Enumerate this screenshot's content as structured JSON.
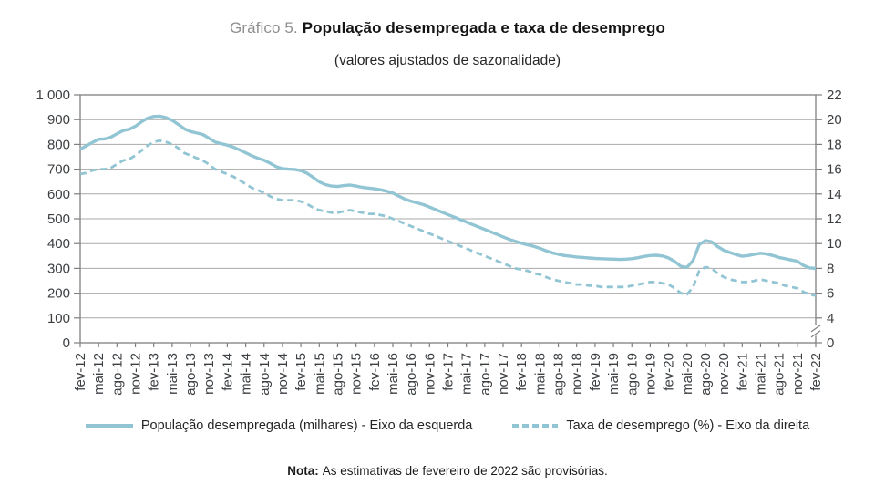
{
  "header": {
    "prefix": "Gráfico 5.",
    "title": "População desempregada e taxa de desemprego",
    "subtitle": "(valores ajustados de sazonalidade)"
  },
  "legend": {
    "series1": "População desempregada (milhares) - Eixo da esquerda",
    "series2": "Taxa de desemprego (%) - Eixo da direita"
  },
  "note": {
    "label": "Nota:",
    "text": "As estimativas de fevereiro de 2022 são provisórias."
  },
  "colors": {
    "line": "#92c5d3",
    "grid": "#a9a9a9",
    "frame": "#7f7f7f",
    "tick_text": "#3c4043",
    "title_prefix": "#8f8f8f"
  },
  "chart_data": {
    "type": "line",
    "title": "Gráfico 5. População desempregada e taxa de desemprego",
    "subtitle": "(valores ajustados de sazonalidade)",
    "grid": true,
    "legend_position": "bottom",
    "x_frequency": "monthly (labels quarterly)",
    "x_labels": [
      "fev-12",
      "mai-12",
      "ago-12",
      "nov-12",
      "fev-13",
      "mai-13",
      "ago-13",
      "nov-13",
      "fev-14",
      "mai-14",
      "ago-14",
      "nov-14",
      "fev-15",
      "mai-15",
      "ago-15",
      "nov-15",
      "fev-16",
      "mai-16",
      "ago-16",
      "nov-16",
      "fev-17",
      "mai-17",
      "ago-17",
      "nov-17",
      "fev-18",
      "mai-18",
      "ago-18",
      "nov-18",
      "fev-19",
      "mai-19",
      "ago-19",
      "nov-19",
      "fev-20",
      "mai-20",
      "ago-20",
      "nov-20",
      "fev-21",
      "mai-21",
      "ago-21",
      "nov-21",
      "fev-22"
    ],
    "left_axis": {
      "min": 0,
      "max": 1000,
      "labels": [
        "1 000",
        "900",
        "800",
        "700",
        "600",
        "500",
        "400",
        "300",
        "200",
        "100",
        "0"
      ],
      "values": [
        1000,
        900,
        800,
        700,
        600,
        500,
        400,
        300,
        200,
        100,
        0
      ]
    },
    "right_axis": {
      "min": 4,
      "max": 22,
      "labels": [
        "22",
        "20",
        "18",
        "16",
        "14",
        "12",
        "10",
        "8",
        "6",
        "4"
      ],
      "values": [
        22,
        20,
        18,
        16,
        14,
        12,
        10,
        8,
        6,
        4
      ],
      "zero_label": "0",
      "has_break": true
    },
    "series": [
      {
        "name": "População desempregada (milhares) - Eixo da esquerda",
        "axis": "left",
        "style": "solid",
        "values": [
          781,
          794,
          808,
          821,
          822,
          829,
          843,
          856,
          861,
          873,
          891,
          906,
          913,
          914,
          908,
          897,
          881,
          863,
          852,
          846,
          840,
          825,
          810,
          803,
          797,
          789,
          778,
          766,
          754,
          744,
          736,
          724,
          710,
          702,
          700,
          699,
          694,
          684,
          667,
          649,
          638,
          632,
          630,
          634,
          636,
          632,
          627,
          624,
          621,
          617,
          611,
          604,
          591,
          579,
          571,
          564,
          557,
          547,
          537,
          527,
          517,
          507,
          497,
          487,
          477,
          467,
          457,
          447,
          437,
          427,
          417,
          409,
          401,
          395,
          389,
          381,
          371,
          363,
          357,
          352,
          349,
          346,
          344,
          342,
          340,
          339,
          338,
          337,
          336,
          337,
          339,
          343,
          348,
          352,
          353,
          350,
          342,
          328,
          308,
          304,
          332,
          396,
          412,
          407,
          388,
          373,
          364,
          356,
          349,
          352,
          357,
          361,
          358,
          352,
          344,
          339,
          334,
          329,
          312,
          302,
          300
        ]
      },
      {
        "name": "Taxa de desemprego (%) - Eixo da direita",
        "axis": "right",
        "style": "dashed",
        "values": [
          15.6,
          15.7,
          15.9,
          16.0,
          16.0,
          16.1,
          16.4,
          16.7,
          16.8,
          17.1,
          17.5,
          17.9,
          18.2,
          18.3,
          18.2,
          18.0,
          17.7,
          17.3,
          17.1,
          16.9,
          16.7,
          16.4,
          16.0,
          15.8,
          15.6,
          15.4,
          15.1,
          14.8,
          14.5,
          14.3,
          14.1,
          13.8,
          13.6,
          13.5,
          13.5,
          13.5,
          13.4,
          13.2,
          12.9,
          12.7,
          12.6,
          12.5,
          12.5,
          12.6,
          12.7,
          12.6,
          12.5,
          12.4,
          12.4,
          12.3,
          12.2,
          12.0,
          11.8,
          11.6,
          11.4,
          11.2,
          11.0,
          10.8,
          10.6,
          10.4,
          10.2,
          10.0,
          9.8,
          9.6,
          9.4,
          9.2,
          9.0,
          8.8,
          8.6,
          8.4,
          8.2,
          8.0,
          7.9,
          7.8,
          7.6,
          7.5,
          7.3,
          7.1,
          7.0,
          6.9,
          6.8,
          6.7,
          6.7,
          6.6,
          6.6,
          6.5,
          6.5,
          6.5,
          6.5,
          6.5,
          6.6,
          6.7,
          6.8,
          6.9,
          6.9,
          6.8,
          6.7,
          6.4,
          6.0,
          5.9,
          6.5,
          7.8,
          8.1,
          8.0,
          7.6,
          7.3,
          7.1,
          7.0,
          6.9,
          6.9,
          7.0,
          7.1,
          7.0,
          6.9,
          6.8,
          6.6,
          6.5,
          6.4,
          6.1,
          5.9,
          5.8
        ]
      }
    ]
  }
}
